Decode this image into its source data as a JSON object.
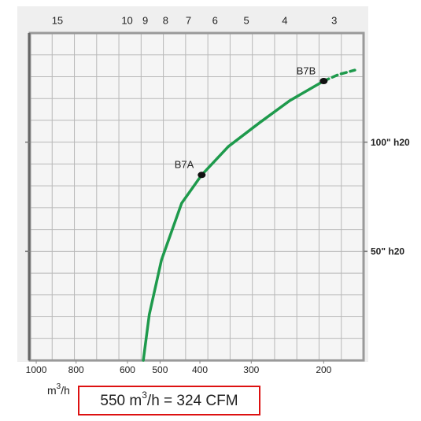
{
  "chart_data": {
    "type": "line",
    "xscale": "log",
    "xlim": [
      1036,
      160
    ],
    "xticks": [
      1000,
      800,
      600,
      500,
      400,
      300,
      200
    ],
    "x2lim": [
      17.6,
      2.53
    ],
    "x2ticks": [
      15,
      10,
      9,
      8,
      7,
      6,
      5,
      4,
      3
    ],
    "ylim": [
      0,
      150
    ],
    "yticks": [
      {
        "value": 100,
        "label": "100\" h20"
      },
      {
        "value": 50,
        "label": "50\" h20"
      }
    ],
    "x_label": [
      "m",
      "3",
      "/h"
    ],
    "annotation": [
      "550 m",
      "3",
      "/h = 324 CFM"
    ],
    "series": [
      {
        "color": "#1e9a4c",
        "dash": false,
        "x": [
          549,
          531,
          496,
          443,
          396,
          341,
          286,
          242,
          200
        ],
        "values": [
          0,
          21,
          46,
          72,
          85,
          98,
          109,
          119,
          128
        ]
      },
      {
        "color": "#1e9a4c",
        "dash": true,
        "x": [
          200,
          184,
          168
        ],
        "values": [
          128,
          131,
          133
        ]
      }
    ],
    "points": [
      {
        "label": "B7A",
        "x": 396,
        "y": 85
      },
      {
        "label": "B7B",
        "x": 200,
        "y": 128
      }
    ]
  }
}
